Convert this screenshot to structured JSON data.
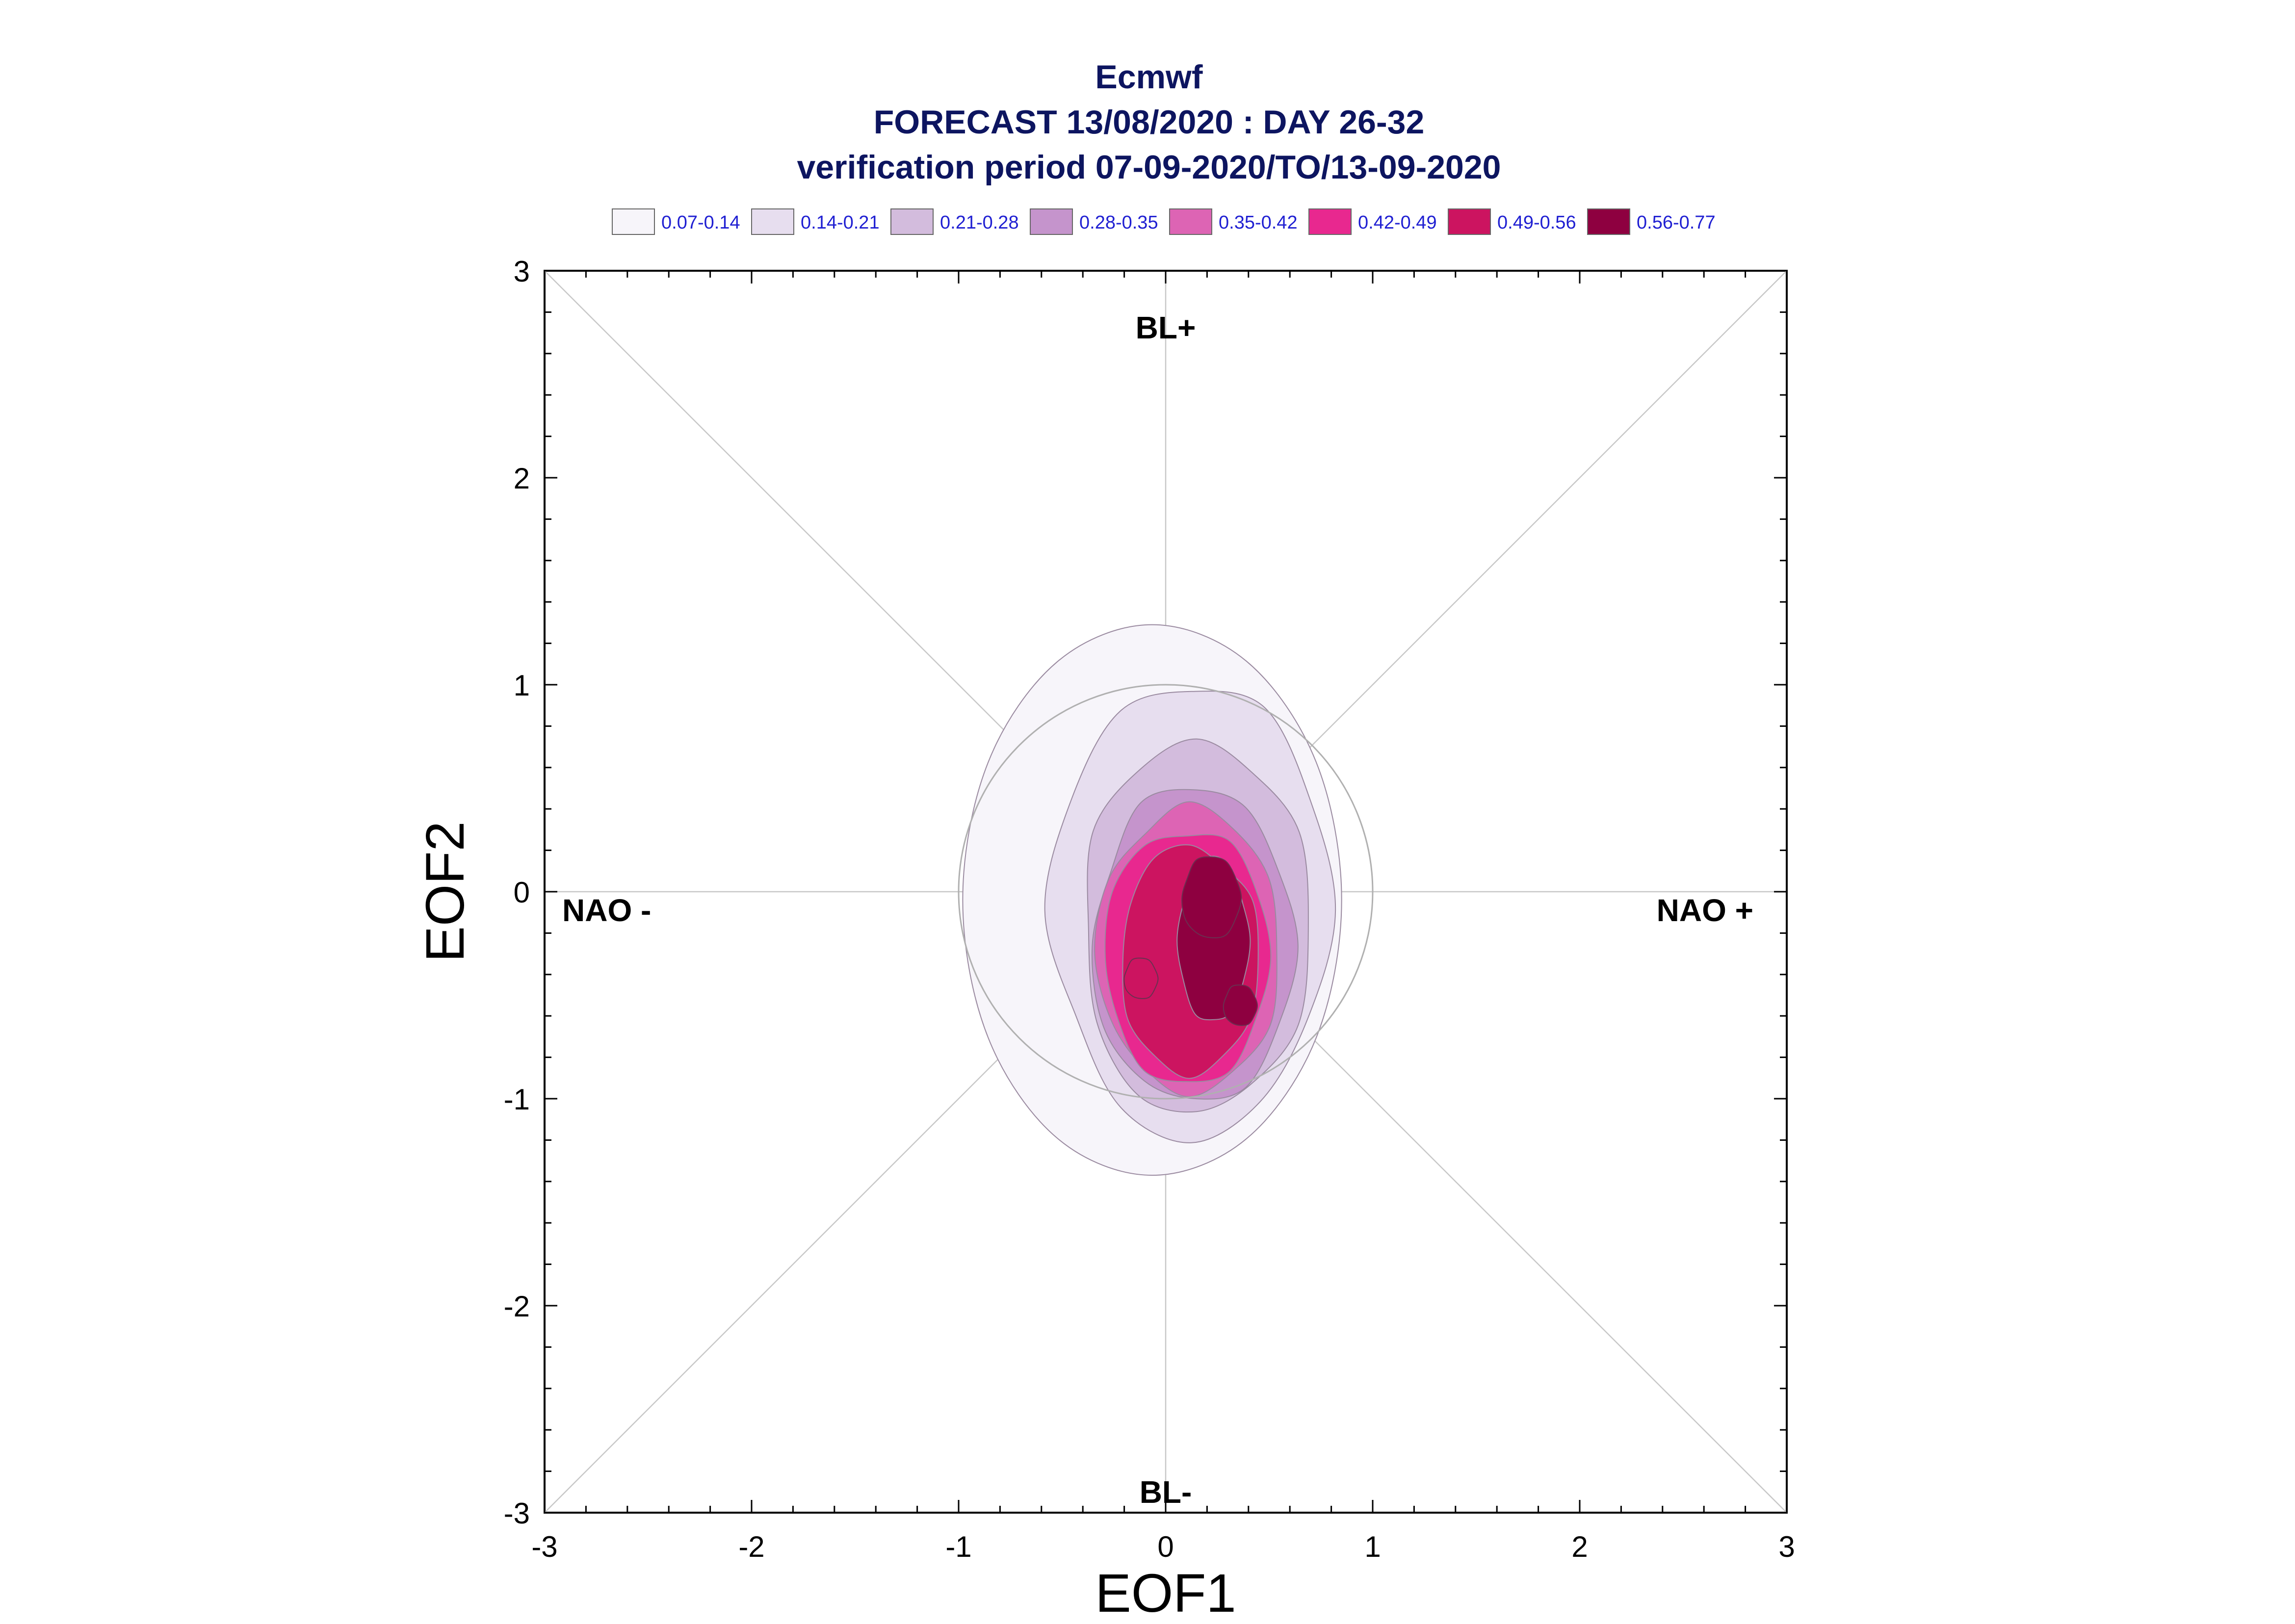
{
  "title": {
    "line1": "Ecmwf",
    "line2": "FORECAST 13/08/2020 : DAY 26-32",
    "line3": "verification period 07-09-2020/TO/13-09-2020"
  },
  "legend": [
    {
      "label": "0.07-0.14",
      "color": "#f7f5fa"
    },
    {
      "label": "0.14-0.21",
      "color": "#e7deef"
    },
    {
      "label": "0.21-0.28",
      "color": "#d3bcdd"
    },
    {
      "label": "0.28-0.35",
      "color": "#c594cc"
    },
    {
      "label": "0.35-0.42",
      "color": "#dd64b4"
    },
    {
      "label": "0.42-0.49",
      "color": "#e8288f"
    },
    {
      "label": "0.49-0.56",
      "color": "#cc1460"
    },
    {
      "label": "0.56-0.77",
      "color": "#8e0040"
    }
  ],
  "chart_data": {
    "type": "contour",
    "title": "Ecmwf FORECAST 13/08/2020 : DAY 26-32 verification period 07-09-2020/TO/13-09-2020",
    "xlabel": "EOF1",
    "ylabel": "EOF2",
    "xlim": [
      -3,
      3
    ],
    "ylim": [
      -3,
      3
    ],
    "x_ticks": [
      "-3",
      "-2",
      "-1",
      "0",
      "1",
      "2",
      "3"
    ],
    "y_ticks": [
      "3",
      "2",
      "1",
      "0",
      "-1",
      "-2",
      "-3"
    ],
    "regime_labels": {
      "top": "BL+",
      "bottom": "BL-",
      "left": "NAO -",
      "right": "NAO +"
    },
    "reference_circle_radius": 1.0,
    "density_peaks": [
      {
        "x": 0.22,
        "y": -0.03,
        "density_range": "0.56-0.77"
      },
      {
        "x": 0.36,
        "y": -0.55,
        "density_range": "0.56-0.77"
      },
      {
        "x": -0.12,
        "y": -0.42,
        "density_range": "0.49-0.56"
      }
    ],
    "contour_levels": [
      {
        "range": "0.07-0.14",
        "x_extent": [
          -0.98,
          0.85
        ],
        "y_extent": [
          -1.37,
          1.29
        ]
      },
      {
        "range": "0.14-0.21",
        "x_extent": [
          -0.55,
          0.8
        ],
        "y_extent": [
          -1.18,
          1.0
        ]
      },
      {
        "range": "0.21-0.28",
        "x_extent": [
          -0.4,
          0.7
        ],
        "y_extent": [
          -1.08,
          0.72
        ]
      },
      {
        "range": "0.28-0.35",
        "x_extent": [
          -0.35,
          0.62
        ],
        "y_extent": [
          -1.03,
          0.5
        ]
      },
      {
        "range": "0.35-0.42",
        "x_extent": [
          -0.33,
          0.55
        ],
        "y_extent": [
          -0.97,
          0.4
        ]
      },
      {
        "range": "0.42-0.49",
        "x_extent": [
          -0.3,
          0.5
        ],
        "y_extent": [
          -0.93,
          0.3
        ]
      },
      {
        "range": "0.49-0.56",
        "x_extent": [
          -0.22,
          0.45
        ],
        "y_extent": [
          -0.88,
          0.22
        ]
      },
      {
        "range": "0.56-0.77",
        "x_extent": [
          0.06,
          0.4
        ],
        "y_extent": [
          -0.63,
          0.16
        ]
      }
    ],
    "grid": false
  }
}
